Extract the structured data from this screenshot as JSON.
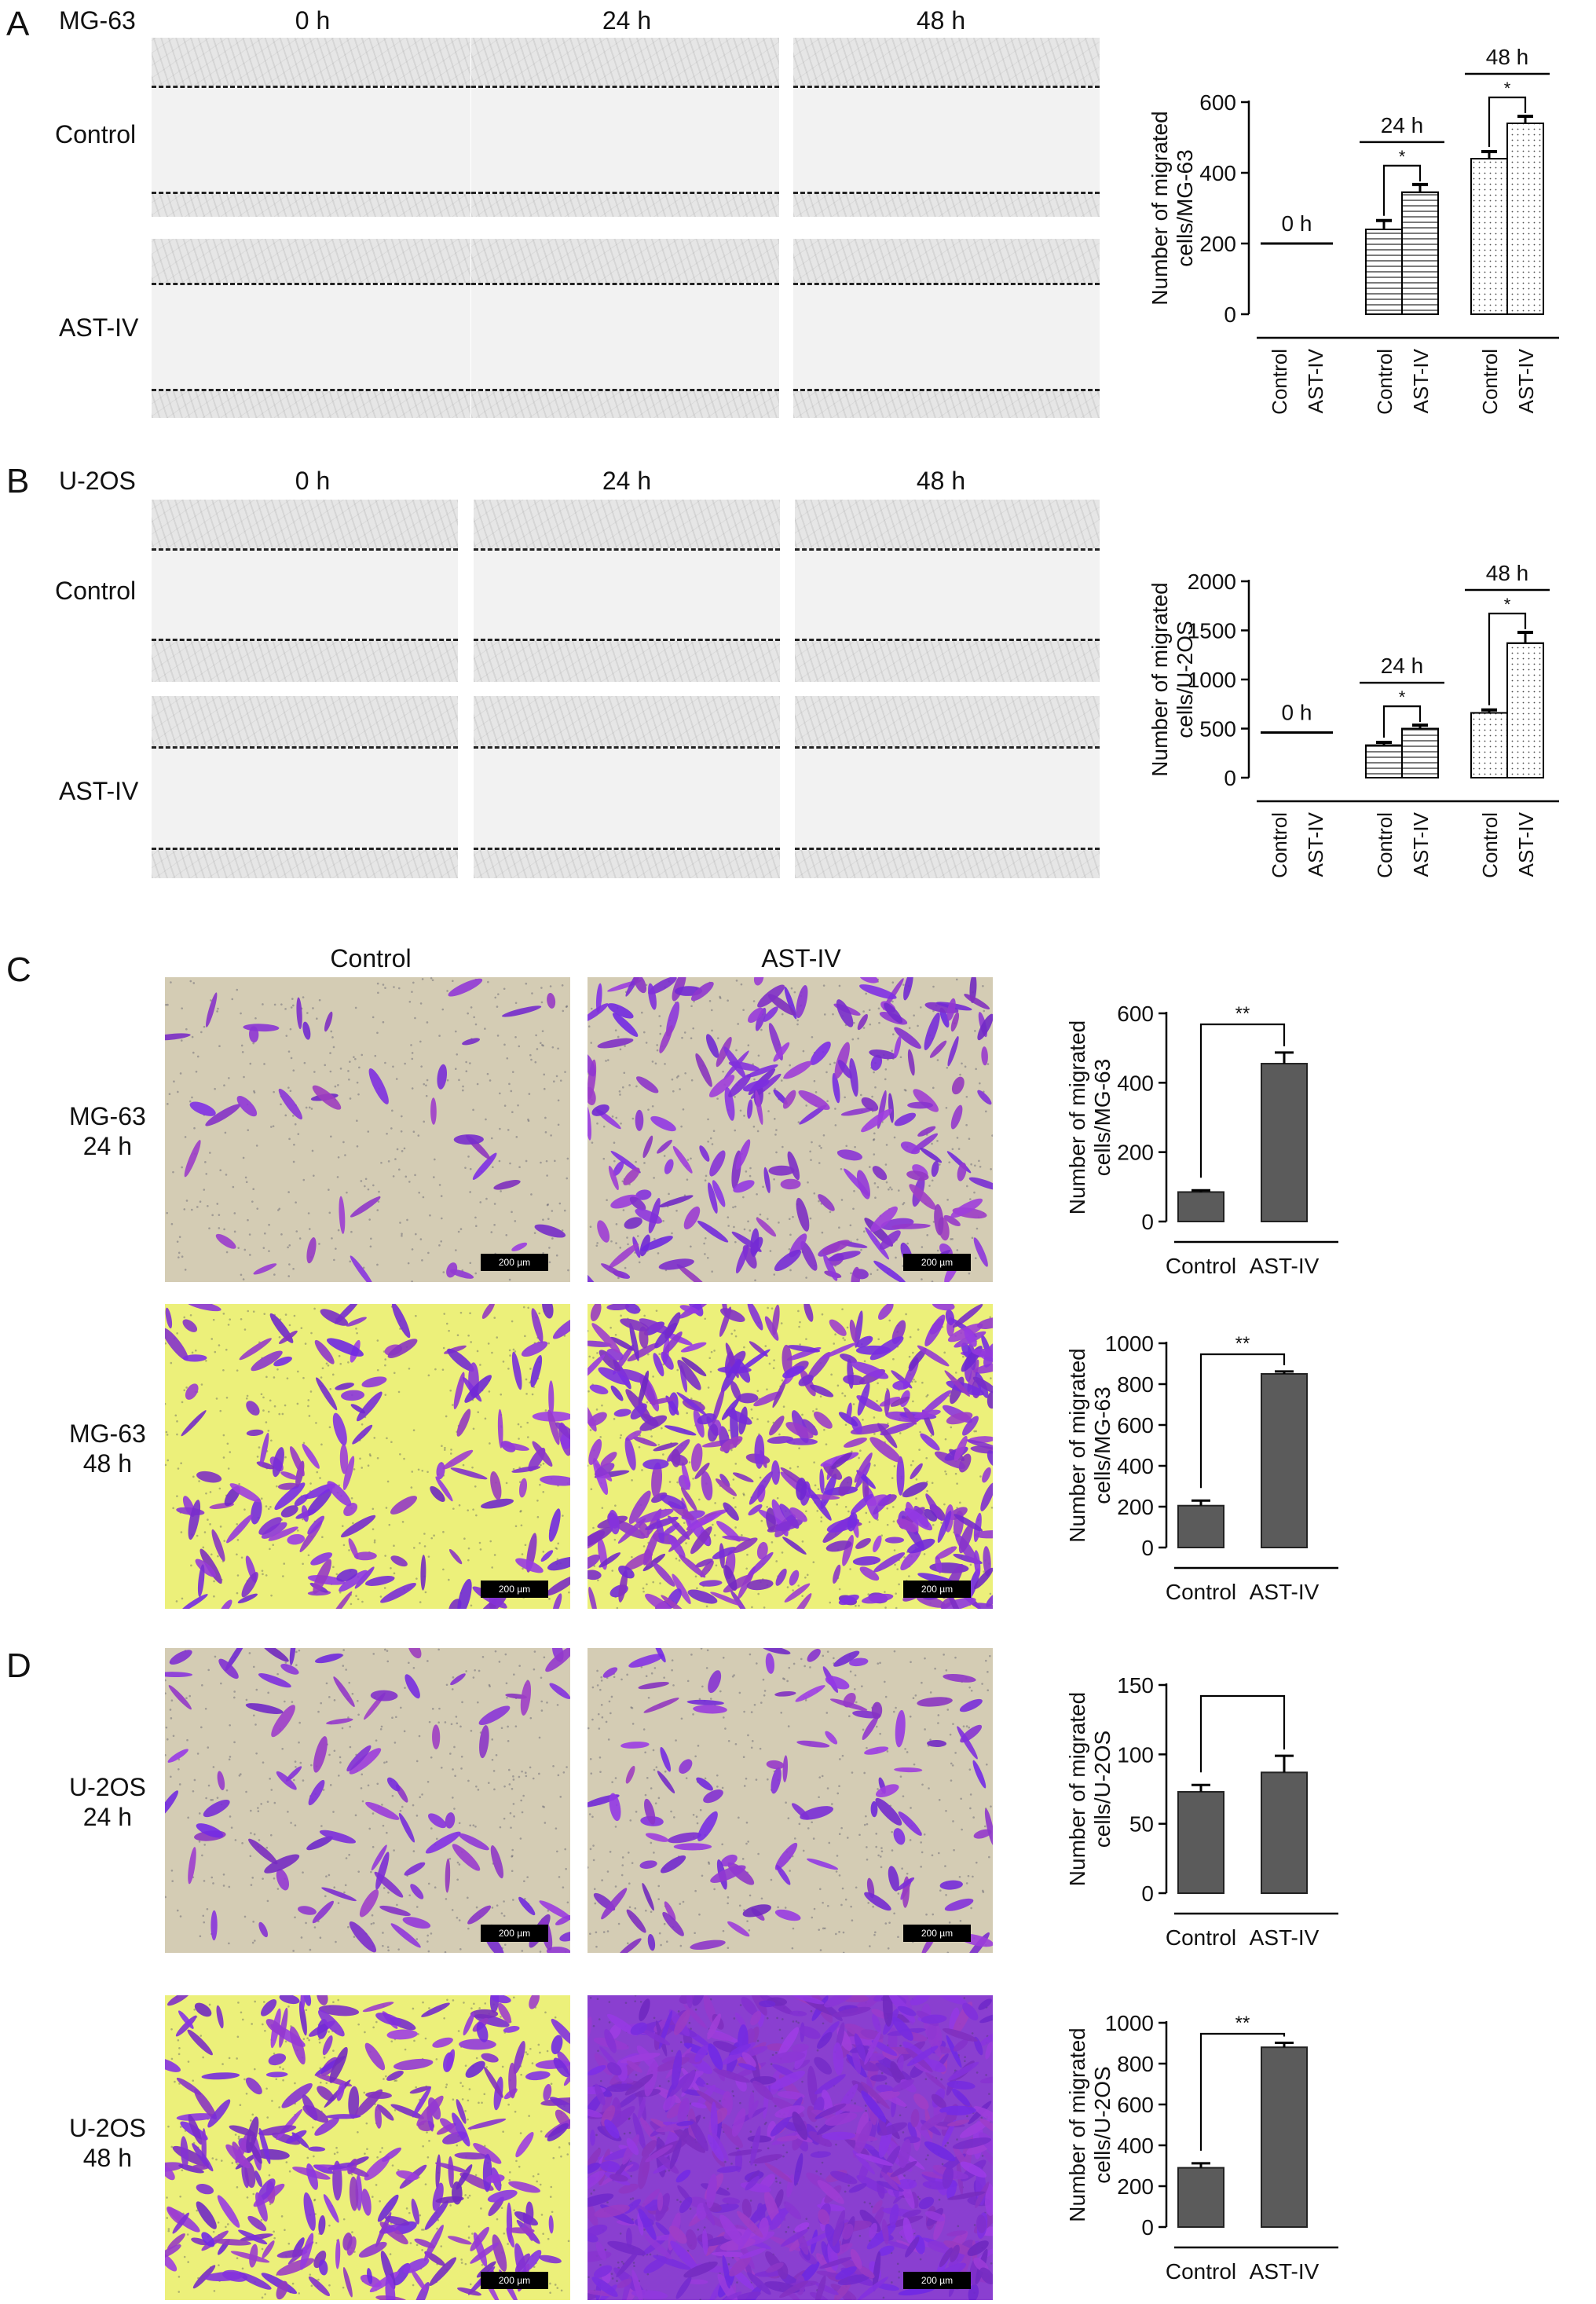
{
  "panel_letters": [
    "A",
    "B",
    "C",
    "D"
  ],
  "wound": {
    "time_labels": [
      "0 h",
      "24 h",
      "48 h"
    ],
    "A": {
      "cell_line": "MG-63",
      "row_labels": [
        "Control",
        "AST-IV"
      ]
    },
    "B": {
      "cell_line": "U-2OS",
      "row_labels": [
        "Control",
        "AST-IV"
      ]
    }
  },
  "transwell": {
    "col_labels": [
      "Control",
      "AST-IV"
    ],
    "rows": [
      {
        "cell": "MG-63",
        "time": "24 h"
      },
      {
        "cell": "MG-63",
        "time": "48 h"
      },
      {
        "cell": "U-2OS",
        "time": "24 h"
      },
      {
        "cell": "U-2OS",
        "time": "48 h"
      }
    ],
    "scale_bar": "200 µm"
  },
  "colors": {
    "bar_dark": "#5b5b5b",
    "stain_violet": "#7a3fc4",
    "stain_bg_beige": "#d4ccb4",
    "stain_bg_yellow": "#ecf07a"
  },
  "chart_data": [
    {
      "id": "A",
      "type": "bar",
      "ylabel": "Number of migrated cells/MG-63",
      "ylim": [
        0,
        600
      ],
      "yticks": [
        0,
        200,
        400,
        600
      ],
      "categories": [
        "Control",
        "AST-IV",
        "Control",
        "AST-IV",
        "Control",
        "AST-IV"
      ],
      "groups": [
        {
          "label": "0 h",
          "values": [
            200,
            200
          ],
          "errors": [
            0,
            0
          ],
          "pattern": "line"
        },
        {
          "label": "24 h",
          "values": [
            240,
            345
          ],
          "errors": [
            25,
            22
          ],
          "pattern": "hlines",
          "sig": "*"
        },
        {
          "label": "48 h",
          "values": [
            440,
            540
          ],
          "errors": [
            20,
            20
          ],
          "pattern": "dots",
          "sig": "*"
        }
      ]
    },
    {
      "id": "B",
      "type": "bar",
      "ylabel": "Number of migrated cells/U-2OS",
      "ylim": [
        0,
        2000
      ],
      "yticks": [
        0,
        500,
        1000,
        1500,
        2000
      ],
      "categories": [
        "Control",
        "AST-IV",
        "Control",
        "AST-IV",
        "Control",
        "AST-IV"
      ],
      "groups": [
        {
          "label": "0 h",
          "values": [
            460,
            460
          ],
          "errors": [
            0,
            0
          ],
          "pattern": "line"
        },
        {
          "label": "24 h",
          "values": [
            330,
            500
          ],
          "errors": [
            30,
            35
          ],
          "pattern": "hlines",
          "sig": "*"
        },
        {
          "label": "48 h",
          "values": [
            660,
            1370
          ],
          "errors": [
            30,
            110
          ],
          "pattern": "dots",
          "sig": "*"
        }
      ]
    },
    {
      "id": "C1",
      "type": "bar",
      "ylabel": "Number of migrated cells/MG-63",
      "ylim": [
        0,
        600
      ],
      "yticks": [
        0,
        200,
        400,
        600
      ],
      "categories": [
        "Control",
        "AST-IV"
      ],
      "values": [
        85,
        455
      ],
      "errors": [
        5,
        32
      ],
      "sig": "**"
    },
    {
      "id": "C2",
      "type": "bar",
      "ylabel": "Number of migrated cells/MG-63",
      "ylim": [
        0,
        1000
      ],
      "yticks": [
        0,
        200,
        400,
        600,
        800,
        1000
      ],
      "categories": [
        "Control",
        "AST-IV"
      ],
      "values": [
        205,
        850
      ],
      "errors": [
        25,
        12
      ],
      "sig": "**"
    },
    {
      "id": "D1",
      "type": "bar",
      "ylabel": "Number of migrated cells/U-2OS",
      "ylim": [
        0,
        150
      ],
      "yticks": [
        0,
        50,
        100,
        150
      ],
      "categories": [
        "Control",
        "AST-IV"
      ],
      "values": [
        73,
        87
      ],
      "errors": [
        5,
        12
      ],
      "sig": ""
    },
    {
      "id": "D2",
      "type": "bar",
      "ylabel": "Number of migrated cells/U-2OS",
      "ylim": [
        0,
        1000
      ],
      "yticks": [
        0,
        200,
        400,
        600,
        800,
        1000
      ],
      "categories": [
        "Control",
        "AST-IV"
      ],
      "values": [
        290,
        880
      ],
      "errors": [
        22,
        22
      ],
      "sig": "**"
    }
  ]
}
